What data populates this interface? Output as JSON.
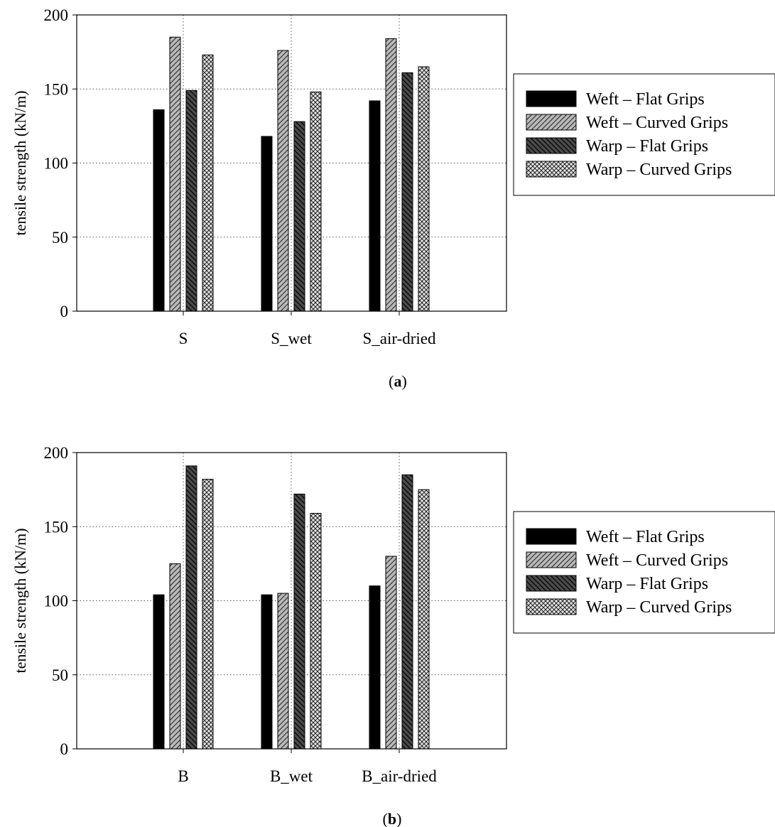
{
  "chart_data": [
    {
      "panel_label": "a",
      "type": "bar",
      "categories": [
        "S",
        "S_wet",
        "S_air-dried"
      ],
      "ylabel": "tensile strength (kN/m)",
      "ylim": [
        0,
        200
      ],
      "yticks": [
        "0",
        "50",
        "100",
        "150",
        "200"
      ],
      "grid": "dotted",
      "legend_position": "right",
      "series": [
        {
          "name": "Weft – Flat Grips",
          "pattern": "solid-black",
          "values": [
            136,
            118,
            142
          ]
        },
        {
          "name": "Weft – Curved Grips",
          "pattern": "light-gray-diagonal",
          "values": [
            185,
            176,
            184
          ]
        },
        {
          "name": "Warp – Flat Grips",
          "pattern": "dark-gray-diagonal",
          "values": [
            149,
            128,
            161
          ]
        },
        {
          "name": "Warp – Curved Grips",
          "pattern": "crosshatch",
          "values": [
            173,
            148,
            165
          ]
        }
      ]
    },
    {
      "panel_label": "b",
      "type": "bar",
      "categories": [
        "B",
        "B_wet",
        "B_air-dried"
      ],
      "ylabel": "tensile strength (kN/m)",
      "ylim": [
        0,
        200
      ],
      "yticks": [
        "0",
        "50",
        "100",
        "150",
        "200"
      ],
      "grid": "dotted",
      "legend_position": "right",
      "series": [
        {
          "name": "Weft – Flat Grips",
          "pattern": "solid-black",
          "values": [
            104,
            104,
            110
          ]
        },
        {
          "name": "Weft – Curved Grips",
          "pattern": "light-gray-diagonal",
          "values": [
            125,
            105,
            130
          ]
        },
        {
          "name": "Warp – Flat Grips",
          "pattern": "dark-gray-diagonal",
          "values": [
            191,
            172,
            185
          ]
        },
        {
          "name": "Warp – Curved Grips",
          "pattern": "crosshatch",
          "values": [
            182,
            159,
            175
          ]
        }
      ]
    }
  ],
  "panels": [
    {
      "label_open": "(",
      "label_letter": "a",
      "label_close": ")"
    },
    {
      "label_open": "(",
      "label_letter": "b",
      "label_close": ")"
    }
  ],
  "colors": {
    "weft_flat": "#000000",
    "weft_curved": "#b9b9b9",
    "warp_flat": "#4a4a4a",
    "warp_curved": "#e0e0e0",
    "grid": "#555555"
  }
}
